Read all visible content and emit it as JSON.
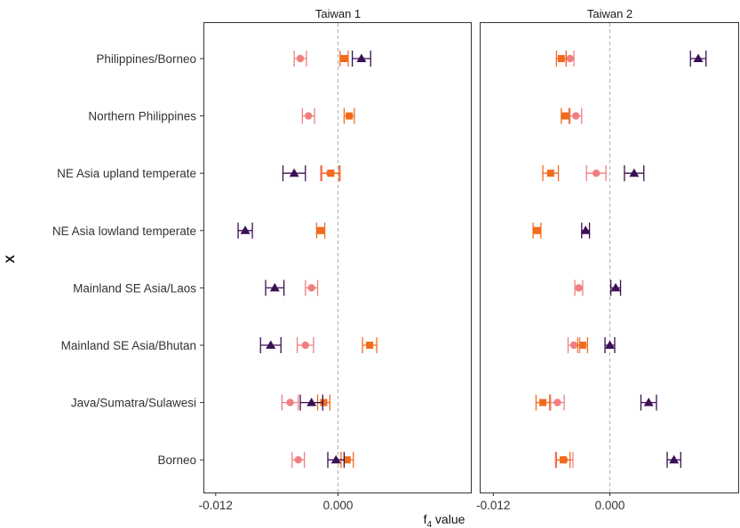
{
  "chart_data": {
    "type": "scatter",
    "xlabel_main": "f",
    "xlabel_sub": "4",
    "xlabel_rest": " value",
    "ylabel": "X",
    "zero_line": "dashed",
    "panels": [
      {
        "title": "Taiwan 1",
        "xlim": [
          -0.0132,
          0.0132
        ],
        "ticks": [
          -0.012,
          0.0
        ],
        "tick_labels": [
          "-0.012",
          "0.000"
        ]
      },
      {
        "title": "Taiwan 2",
        "xlim": [
          -0.0134,
          0.0134
        ],
        "ticks": [
          -0.012,
          0.0
        ],
        "tick_labels": [
          "-0.012",
          "0.000"
        ]
      }
    ],
    "categories": [
      "Philippines/Borneo",
      "Northern Philippines",
      "NE Asia upland temperate",
      "NE Asia lowland temperate",
      "Mainland SE Asia/Laos",
      "Mainland SE Asia/Bhutan",
      "Java/Sumatra/Sulawesi",
      "Borneo"
    ],
    "series": [
      {
        "color": "#F08080",
        "marker": "circle",
        "points": [
          {
            "panel": 0,
            "row": 0,
            "x": -0.0037,
            "err": 0.0006
          },
          {
            "panel": 0,
            "row": 1,
            "x": -0.0029,
            "err": 0.0006
          },
          {
            "panel": 0,
            "row": 2,
            "x": -0.0008,
            "err": 0.0009
          },
          {
            "panel": 0,
            "row": 4,
            "x": -0.0026,
            "err": 0.0006
          },
          {
            "panel": 0,
            "row": 5,
            "x": -0.0032,
            "err": 0.0008
          },
          {
            "panel": 0,
            "row": 6,
            "x": -0.0047,
            "err": 0.0008
          },
          {
            "panel": 0,
            "row": 7,
            "x": -0.0039,
            "err": 0.0006
          },
          {
            "panel": 1,
            "row": 0,
            "x": -0.0041,
            "err": 0.0004
          },
          {
            "panel": 1,
            "row": 1,
            "x": -0.0035,
            "err": 0.0006
          },
          {
            "panel": 1,
            "row": 2,
            "x": -0.0014,
            "err": 0.001
          },
          {
            "panel": 1,
            "row": 4,
            "x": -0.0032,
            "err": 0.0004
          },
          {
            "panel": 1,
            "row": 5,
            "x": -0.0037,
            "err": 0.0006
          },
          {
            "panel": 1,
            "row": 6,
            "x": -0.0054,
            "err": 0.0007
          },
          {
            "panel": 1,
            "row": 7,
            "x": -0.0047,
            "err": 0.0009
          }
        ]
      },
      {
        "color": "#F26B1D",
        "marker": "square",
        "points": [
          {
            "panel": 0,
            "row": 0,
            "x": 0.0006,
            "err": 0.0004
          },
          {
            "panel": 0,
            "row": 1,
            "x": 0.0011,
            "err": 0.0005
          },
          {
            "panel": 0,
            "row": 2,
            "x": -0.0007,
            "err": 0.0009
          },
          {
            "panel": 0,
            "row": 3,
            "x": -0.0017,
            "err": 0.0004
          },
          {
            "panel": 0,
            "row": 5,
            "x": 0.0031,
            "err": 0.0007
          },
          {
            "panel": 0,
            "row": 6,
            "x": -0.0014,
            "err": 0.0006
          },
          {
            "panel": 0,
            "row": 7,
            "x": 0.0009,
            "err": 0.0006
          },
          {
            "panel": 1,
            "row": 0,
            "x": -0.005,
            "err": 0.0005
          },
          {
            "panel": 1,
            "row": 1,
            "x": -0.0046,
            "err": 0.0004
          },
          {
            "panel": 1,
            "row": 2,
            "x": -0.0061,
            "err": 0.0008
          },
          {
            "panel": 1,
            "row": 3,
            "x": -0.0075,
            "err": 0.0004
          },
          {
            "panel": 1,
            "row": 5,
            "x": -0.0028,
            "err": 0.0005
          },
          {
            "panel": 1,
            "row": 6,
            "x": -0.0069,
            "err": 0.0007
          },
          {
            "panel": 1,
            "row": 7,
            "x": -0.0048,
            "err": 0.0007
          }
        ]
      },
      {
        "color": "#3B0F53",
        "marker": "triangle",
        "points": [
          {
            "panel": 0,
            "row": 0,
            "x": 0.0023,
            "err": 0.0009
          },
          {
            "panel": 0,
            "row": 2,
            "x": -0.0043,
            "err": 0.0011
          },
          {
            "panel": 0,
            "row": 3,
            "x": -0.0091,
            "err": 0.0007
          },
          {
            "panel": 0,
            "row": 4,
            "x": -0.0062,
            "err": 0.0009
          },
          {
            "panel": 0,
            "row": 5,
            "x": -0.0066,
            "err": 0.001
          },
          {
            "panel": 0,
            "row": 6,
            "x": -0.0026,
            "err": 0.0011
          },
          {
            "panel": 0,
            "row": 7,
            "x": -0.0002,
            "err": 0.0008
          },
          {
            "panel": 1,
            "row": 0,
            "x": 0.0091,
            "err": 0.0008
          },
          {
            "panel": 1,
            "row": 2,
            "x": 0.0025,
            "err": 0.001
          },
          {
            "panel": 1,
            "row": 3,
            "x": -0.0025,
            "err": 0.0004
          },
          {
            "panel": 1,
            "row": 4,
            "x": 0.0006,
            "err": 0.0005
          },
          {
            "panel": 1,
            "row": 5,
            "x": 0.0,
            "err": 0.0005
          },
          {
            "panel": 1,
            "row": 6,
            "x": 0.004,
            "err": 0.0008
          },
          {
            "panel": 1,
            "row": 7,
            "x": 0.0066,
            "err": 0.0007
          }
        ]
      }
    ]
  }
}
